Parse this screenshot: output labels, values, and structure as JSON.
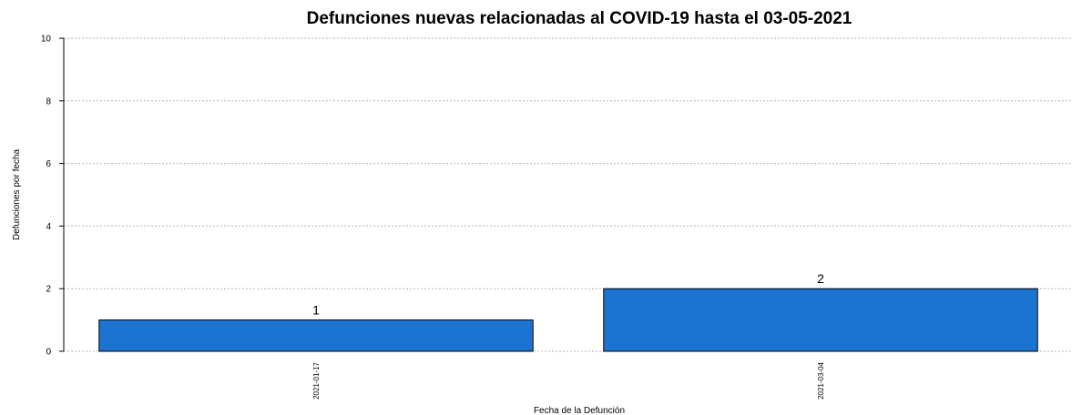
{
  "chart_data": {
    "type": "bar",
    "title": "Defunciones nuevas relacionadas al COVID-19 hasta el 03-05-2021",
    "xlabel": "Fecha de la Defunción",
    "ylabel": "Defunciones por fecha",
    "categories": [
      "2021-01-17",
      "2021-03-04"
    ],
    "values": [
      1,
      2
    ],
    "data_labels": [
      "1",
      "2"
    ],
    "ylim": [
      0,
      10
    ],
    "yticks": [
      0,
      2,
      4,
      6,
      8,
      10
    ],
    "ytick_labels": [
      "0",
      "2",
      "4",
      "6",
      "8",
      "10"
    ],
    "grid": "horizontal-dashed",
    "bar_color": "#1c74d0"
  }
}
